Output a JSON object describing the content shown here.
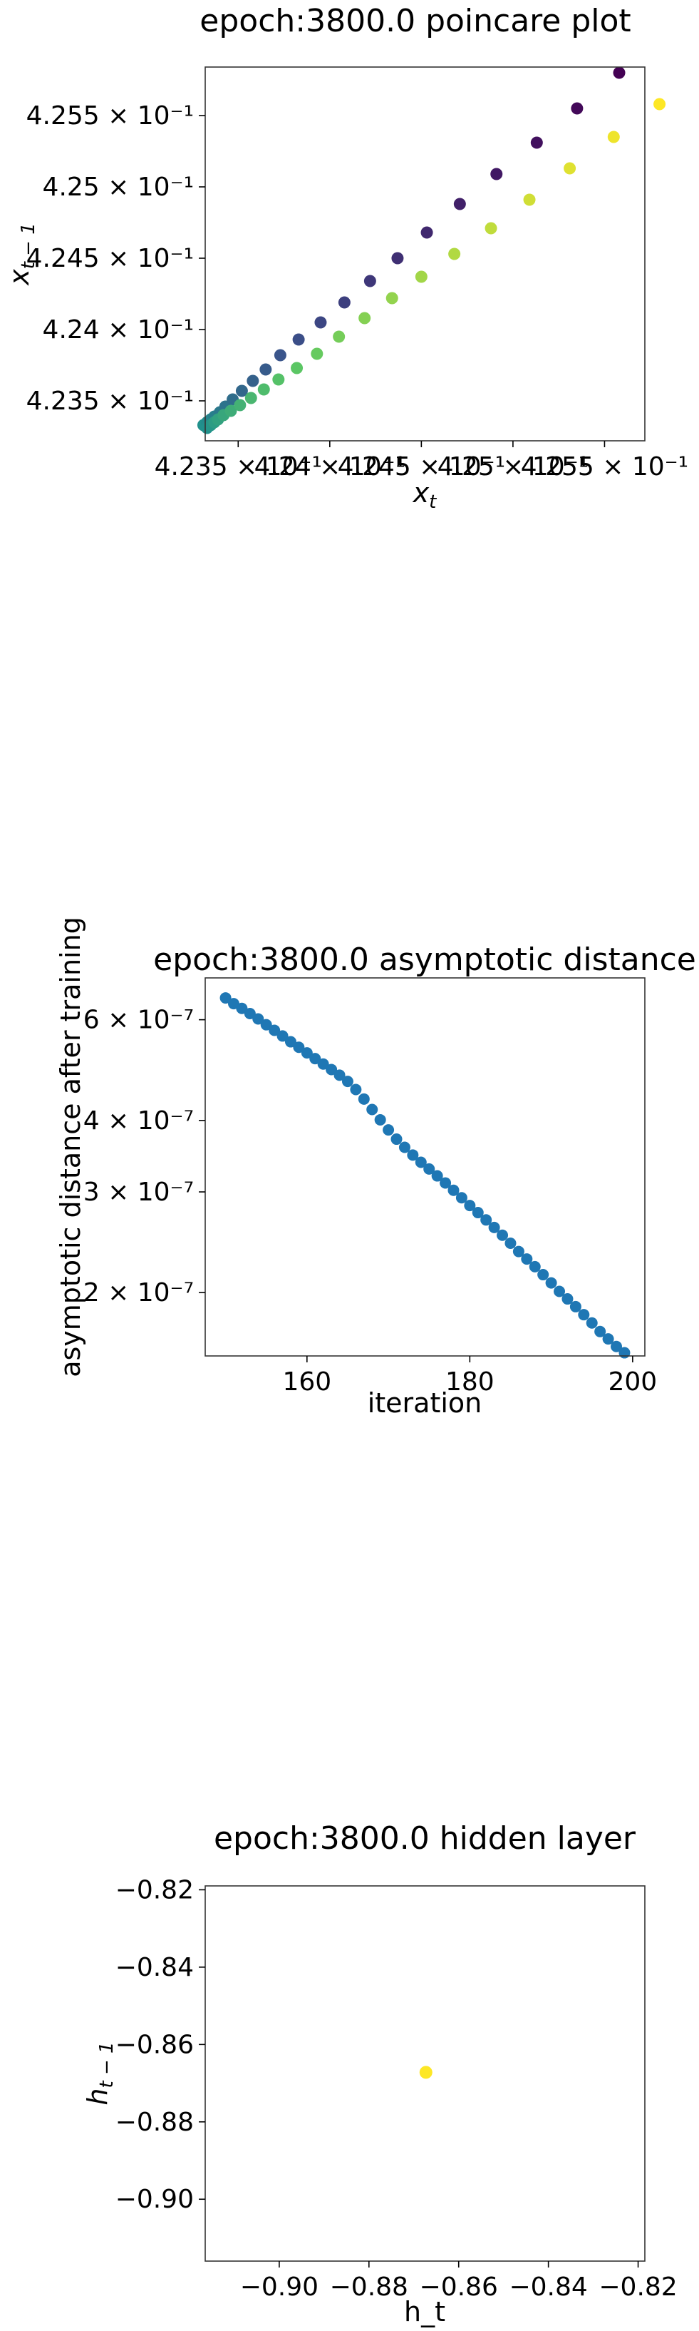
{
  "chart_data": [
    {
      "type": "scatter",
      "title": "epoch:3800.0 poincare plot",
      "xlabel": "x_t",
      "ylabel": "x_{t-1}",
      "xlim": [
        0.42332,
        0.42572
      ],
      "ylim": [
        0.42322,
        0.42584
      ],
      "xticks": [
        {
          "value": 0.4235,
          "label": "4.235 × 10⁻¹"
        },
        {
          "value": 0.424,
          "label": "4.24 × 10⁻¹"
        },
        {
          "value": 0.4245,
          "label": "4.245 × 10⁻¹"
        },
        {
          "value": 0.425,
          "label": "4.25 × 10⁻¹"
        },
        {
          "value": 0.4255,
          "label": "4.255 × 10⁻¹"
        }
      ],
      "yticks": [
        {
          "value": 0.4235,
          "label": "4.235 × 10⁻¹"
        },
        {
          "value": 0.424,
          "label": "4.24 × 10⁻¹"
        },
        {
          "value": 0.4245,
          "label": "4.245 × 10⁻¹"
        },
        {
          "value": 0.425,
          "label": "4.25 × 10⁻¹"
        },
        {
          "value": 0.4255,
          "label": "4.255 × 10⁻¹"
        }
      ],
      "colormap": "viridis",
      "upper_branch": [
        [
          0.42331,
          0.42333
        ],
        [
          0.42333,
          0.42335
        ],
        [
          0.42335,
          0.42337
        ],
        [
          0.42337,
          0.42339
        ],
        [
          0.4234,
          0.42342
        ],
        [
          0.42343,
          0.42346
        ],
        [
          0.42347,
          0.42351
        ],
        [
          0.42352,
          0.42357
        ],
        [
          0.42358,
          0.42364
        ],
        [
          0.42365,
          0.42372
        ],
        [
          0.42373,
          0.42382
        ],
        [
          0.42383,
          0.42393
        ],
        [
          0.42395,
          0.42405
        ],
        [
          0.42408,
          0.42419
        ],
        [
          0.42422,
          0.42434
        ],
        [
          0.42437,
          0.4245
        ],
        [
          0.42453,
          0.42468
        ],
        [
          0.42471,
          0.42488
        ],
        [
          0.42491,
          0.42509
        ],
        [
          0.42513,
          0.42531
        ],
        [
          0.42535,
          0.42555
        ],
        [
          0.42558,
          0.4258
        ]
      ],
      "lower_branch": [
        [
          0.42333,
          0.42331
        ],
        [
          0.42335,
          0.42333
        ],
        [
          0.42337,
          0.42335
        ],
        [
          0.42339,
          0.42337
        ],
        [
          0.42342,
          0.4234
        ],
        [
          0.42346,
          0.42343
        ],
        [
          0.42351,
          0.42347
        ],
        [
          0.42357,
          0.42352
        ],
        [
          0.42364,
          0.42358
        ],
        [
          0.42372,
          0.42365
        ],
        [
          0.42382,
          0.42373
        ],
        [
          0.42393,
          0.42383
        ],
        [
          0.42405,
          0.42395
        ],
        [
          0.42419,
          0.42408
        ],
        [
          0.42434,
          0.42422
        ],
        [
          0.4245,
          0.42437
        ],
        [
          0.42468,
          0.42453
        ],
        [
          0.42488,
          0.42471
        ],
        [
          0.42509,
          0.42491
        ],
        [
          0.42531,
          0.42513
        ],
        [
          0.42555,
          0.42535
        ],
        [
          0.4258,
          0.42558
        ]
      ],
      "colors": {
        "start": "#440154",
        "mid": "#21918c",
        "end": "#fde725"
      },
      "grid": false
    },
    {
      "type": "scatter",
      "title": "epoch:3800.0 asymptotic distance",
      "xlabel": "iteration",
      "ylabel": "asymptotic distance after training",
      "yscale": "log",
      "xlim": [
        147.5,
        201.5
      ],
      "ylim": [
        1.55e-07,
        7.1e-07
      ],
      "xticks": [
        {
          "value": 160,
          "label": "160"
        },
        {
          "value": 180,
          "label": "180"
        },
        {
          "value": 200,
          "label": "200"
        }
      ],
      "yticks": [
        {
          "value": 2e-07,
          "label": "2 × 10⁻⁷"
        },
        {
          "value": 3e-07,
          "label": "3 × 10⁻⁷"
        },
        {
          "value": 4e-07,
          "label": "4 × 10⁻⁷"
        },
        {
          "value": 6e-07,
          "label": "6 × 10⁻⁷"
        }
      ],
      "x": [
        150,
        151,
        152,
        153,
        154,
        155,
        156,
        157,
        158,
        159,
        160,
        161,
        162,
        163,
        164,
        165,
        166,
        167,
        168,
        169,
        170,
        171,
        172,
        173,
        174,
        175,
        176,
        177,
        178,
        179,
        180,
        181,
        182,
        183,
        184,
        185,
        186,
        187,
        188,
        189,
        190,
        191,
        192,
        193,
        194,
        195,
        196,
        197,
        198,
        199
      ],
      "values": [
        6.55e-07,
        6.4e-07,
        6.28e-07,
        6.15e-07,
        6.02e-07,
        5.88e-07,
        5.75e-07,
        5.62e-07,
        5.49e-07,
        5.37e-07,
        5.25e-07,
        5.13e-07,
        5.02e-07,
        4.91e-07,
        4.8e-07,
        4.68e-07,
        4.53e-07,
        4.36e-07,
        4.18e-07,
        4.01e-07,
        3.85e-07,
        3.71e-07,
        3.59e-07,
        3.48e-07,
        3.38e-07,
        3.29e-07,
        3.2e-07,
        3.11e-07,
        3.02e-07,
        2.93e-07,
        2.84e-07,
        2.76e-07,
        2.68e-07,
        2.6e-07,
        2.52e-07,
        2.44e-07,
        2.36e-07,
        2.29e-07,
        2.22e-07,
        2.15e-07,
        2.08e-07,
        2.01e-07,
        1.95e-07,
        1.89e-07,
        1.83e-07,
        1.77e-07,
        1.71e-07,
        1.66e-07,
        1.61e-07,
        1.57e-07
      ],
      "color": "#1f77b4",
      "grid": false
    },
    {
      "type": "scatter",
      "title": "epoch:3800.0 hidden layer",
      "xlabel": "h_t",
      "ylabel": "h_{t-1}",
      "xlim": [
        -0.9165,
        -0.8185
      ],
      "ylim": [
        -0.916,
        -0.819
      ],
      "xticks": [
        {
          "value": -0.9,
          "label": "−0.90"
        },
        {
          "value": -0.88,
          "label": "−0.88"
        },
        {
          "value": -0.86,
          "label": "−0.86"
        },
        {
          "value": -0.84,
          "label": "−0.84"
        },
        {
          "value": -0.82,
          "label": "−0.82"
        }
      ],
      "yticks": [
        {
          "value": -0.82,
          "label": "−0.82"
        },
        {
          "value": -0.84,
          "label": "−0.84"
        },
        {
          "value": -0.86,
          "label": "−0.86"
        },
        {
          "value": -0.88,
          "label": "−0.88"
        },
        {
          "value": -0.9,
          "label": "−0.90"
        }
      ],
      "points": [
        [
          -0.8673,
          -0.8672
        ]
      ],
      "color": "#fde725",
      "grid": false
    }
  ]
}
